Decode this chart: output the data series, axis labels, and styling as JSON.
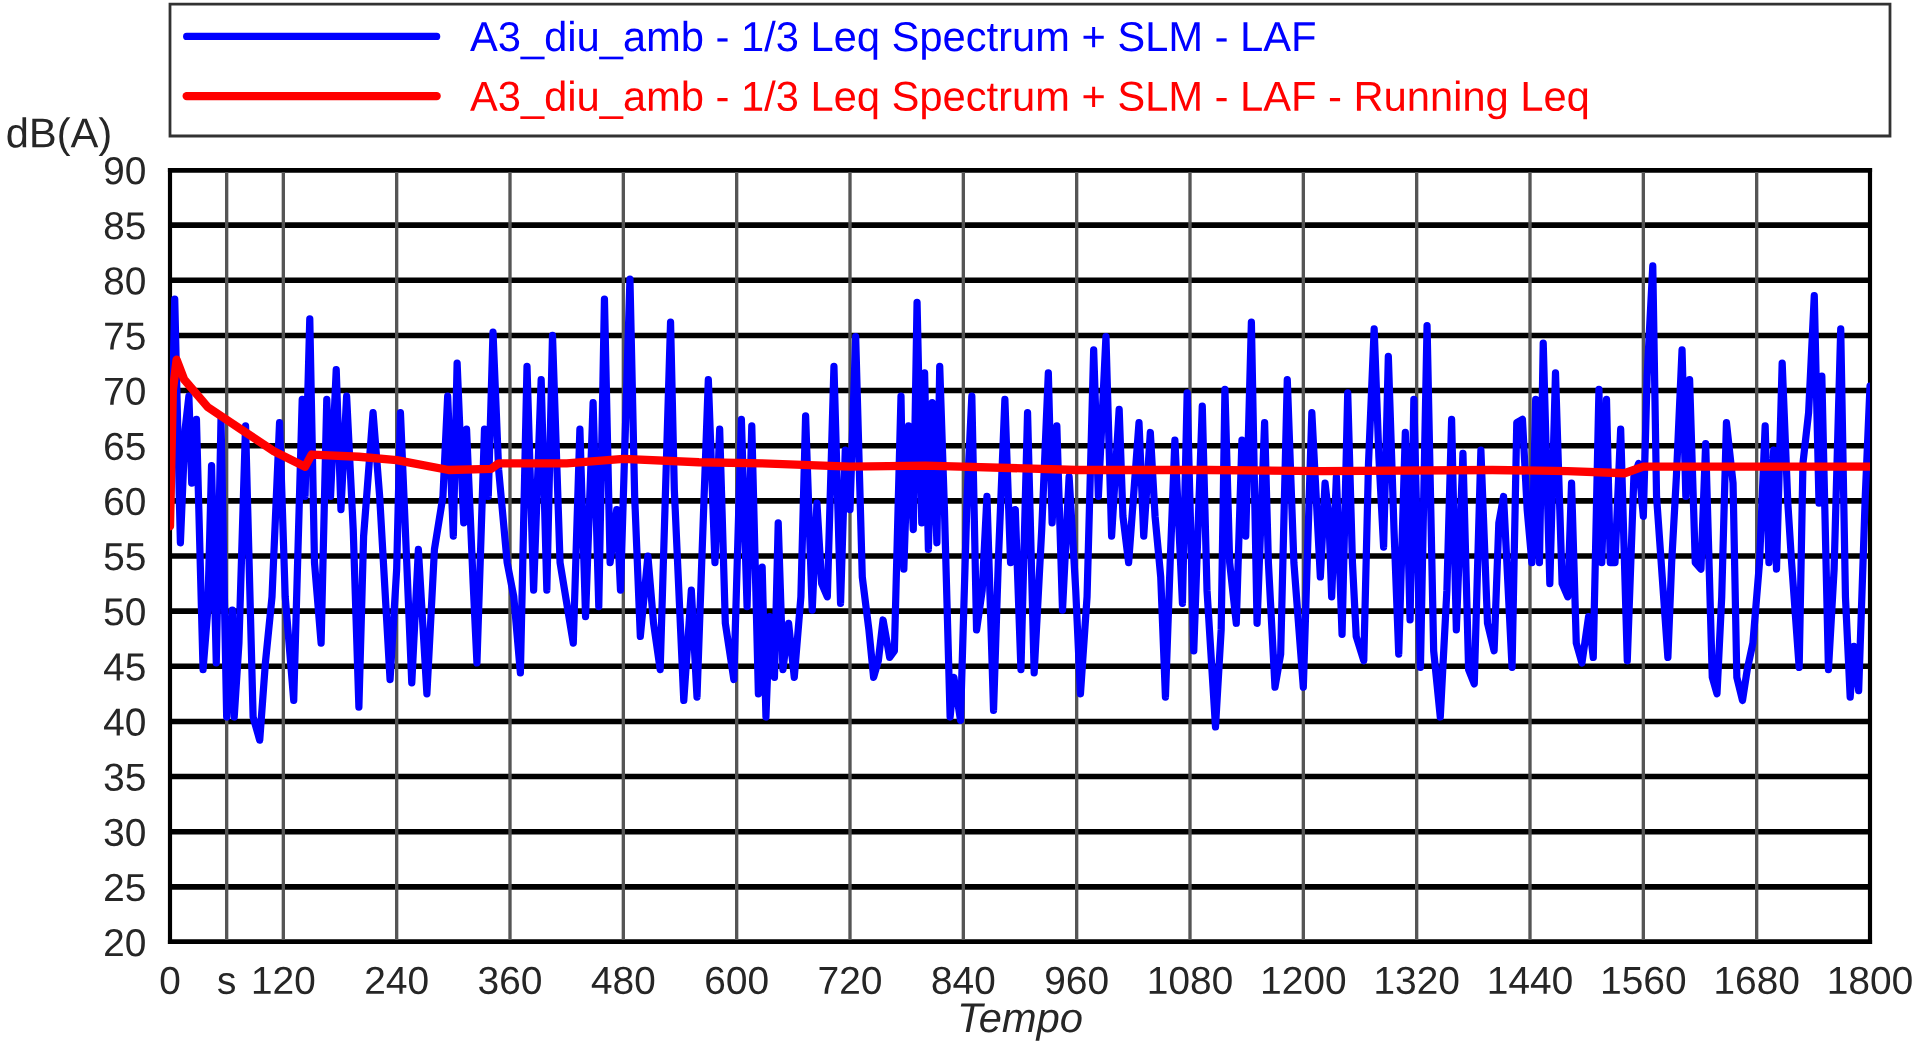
{
  "chart_data": {
    "type": "line",
    "xlabel": "Tempo",
    "ylabel": "dB(A)",
    "xlim": [
      0,
      1800
    ],
    "ylim": [
      20,
      90
    ],
    "xticks": [
      0,
      {
        "value": 60,
        "label": "s"
      },
      120,
      240,
      360,
      480,
      600,
      720,
      840,
      960,
      1080,
      1200,
      1320,
      1440,
      1560,
      1680,
      1800
    ],
    "yticks": [
      20,
      25,
      30,
      35,
      40,
      45,
      50,
      55,
      60,
      65,
      70,
      75,
      80,
      85,
      90
    ],
    "grid": true,
    "legend": "top",
    "line_style": "solid",
    "marker": "none",
    "series": [
      {
        "name": "A3_diu_amb - 1/3 Leq Spectrum + SLM - LAF",
        "color": "#0000ff",
        "x": [
          0,
          5,
          11,
          16,
          20,
          23,
          28,
          35,
          40,
          44,
          49,
          54,
          60,
          66,
          68,
          73,
          80,
          88,
          95,
          101,
          108,
          116,
          122,
          131,
          140,
          143,
          148,
          153,
          160,
          166,
          170,
          176,
          181,
          187,
          194,
          200,
          205,
          215,
          222,
          233,
          240,
          244,
          256,
          263,
          272,
          280,
          289,
          294,
          300,
          304,
          311,
          314,
          321,
          325,
          333,
          337,
          342,
          348,
          357,
          364,
          371,
          378,
          385,
          393,
          399,
          405,
          413,
          427,
          434,
          440,
          448,
          454,
          460,
          466,
          473,
          477,
          487,
          492,
          498,
          506,
          512,
          519,
          530,
          534,
          544,
          552,
          558,
          563,
          570,
          577,
          582,
          588,
          597,
          605,
          611,
          616,
          623,
          627,
          631,
          635,
          640,
          644,
          649,
          655,
          661,
          668,
          673,
          680,
          685,
          690,
          696,
          703,
          710,
          715,
          720,
          726,
          733,
          740,
          745,
          750,
          755,
          762,
          767,
          774,
          777,
          782,
          787,
          791,
          796,
          799,
          803,
          807,
          812,
          815,
          820,
          826,
          830,
          837,
          844,
          849,
          854,
          860,
          865,
          872,
          877,
          884,
          890,
          895,
          901,
          908,
          915,
          923,
          930,
          934,
          939,
          945,
          952,
          959,
          964,
          971,
          978,
          983,
          991,
          997,
          1005,
          1009,
          1015,
          1026,
          1031,
          1038,
          1043,
          1049,
          1054,
          1059,
          1064,
          1072,
          1077,
          1084,
          1093,
          1098,
          1107,
          1113,
          1117,
          1122,
          1129,
          1135,
          1139,
          1145,
          1151,
          1159,
          1163,
          1170,
          1176,
          1183,
          1190,
          1200,
          1209,
          1218,
          1223,
          1227,
          1230,
          1235,
          1241,
          1247,
          1252,
          1256,
          1264,
          1269,
          1275,
          1280,
          1285,
          1290,
          1296,
          1301,
          1308,
          1313,
          1317,
          1324,
          1331,
          1338,
          1345,
          1352,
          1357,
          1362,
          1369,
          1375,
          1381,
          1388,
          1395,
          1402,
          1407,
          1412,
          1421,
          1426,
          1432,
          1437,
          1442,
          1446,
          1450,
          1454,
          1461,
          1467,
          1474,
          1480,
          1484,
          1489,
          1495,
          1502,
          1507,
          1513,
          1516,
          1521,
          1525,
          1530,
          1536,
          1543,
          1550,
          1555,
          1560,
          1564,
          1570,
          1574,
          1580,
          1586,
          1590,
          1595,
          1601,
          1605,
          1609,
          1615,
          1621,
          1626,
          1633,
          1638,
          1643,
          1648,
          1655,
          1659,
          1665,
          1670,
          1676,
          1683,
          1689,
          1693,
          1698,
          1701,
          1707,
          1713,
          1717,
          1725,
          1729,
          1735,
          1741,
          1746,
          1749,
          1756,
          1762,
          1769,
          1774,
          1779,
          1783,
          1788,
          1795,
          1800
        ],
        "values": [
          57.7,
          78.3,
          56.2,
          66.5,
          69.5,
          61.6,
          67.4,
          44.7,
          50.1,
          63.2,
          45.3,
          67.4,
          40.4,
          50.1,
          40.4,
          47.1,
          66.8,
          40.4,
          38.3,
          45.3,
          51.3,
          67.1,
          51.3,
          41.9,
          69.2,
          60.4,
          76.5,
          54.4,
          47.1,
          69.2,
          60.4,
          71.9,
          59.2,
          69.5,
          57.4,
          41.3,
          56.8,
          68.0,
          60.4,
          43.8,
          53.8,
          68.0,
          43.5,
          55.6,
          42.5,
          55.6,
          60.4,
          69.5,
          56.8,
          72.5,
          58.0,
          66.5,
          52.5,
          45.3,
          66.5,
          60.4,
          75.3,
          62.8,
          54.4,
          51.3,
          44.4,
          72.2,
          51.9,
          71.0,
          51.9,
          75.0,
          54.4,
          47.1,
          66.5,
          49.5,
          68.9,
          50.4,
          78.3,
          54.4,
          59.2,
          51.9,
          80.1,
          60.4,
          47.7,
          55.0,
          48.9,
          44.7,
          76.2,
          61.0,
          41.9,
          51.9,
          42.2,
          54.4,
          71.0,
          54.4,
          66.5,
          48.9,
          43.8,
          67.4,
          50.4,
          66.8,
          42.5,
          54.0,
          40.4,
          49.5,
          44.0,
          58.0,
          44.7,
          48.9,
          44.0,
          51.3,
          67.7,
          50.1,
          59.8,
          52.5,
          51.3,
          72.2,
          50.7,
          64.6,
          59.2,
          74.9,
          53.1,
          48.3,
          44.0,
          45.5,
          49.2,
          45.8,
          46.4,
          69.5,
          53.8,
          66.8,
          57.4,
          78.0,
          58.0,
          71.6,
          55.6,
          68.9,
          56.2,
          72.2,
          59.2,
          40.4,
          44.0,
          40.1,
          60.4,
          69.5,
          48.3,
          51.9,
          60.4,
          41.0,
          54.4,
          69.2,
          54.4,
          59.2,
          44.7,
          68.0,
          44.4,
          57.4,
          71.6,
          58.0,
          66.8,
          50.1,
          62.2,
          51.9,
          42.5,
          51.3,
          73.7,
          60.4,
          74.9,
          56.8,
          68.3,
          58.6,
          54.4,
          67.1,
          56.8,
          66.2,
          58.6,
          53.1,
          42.2,
          54.4,
          65.5,
          50.7,
          69.8,
          46.4,
          68.6,
          51.9,
          39.5,
          48.3,
          70.1,
          54.4,
          48.9,
          65.5,
          56.8,
          76.2,
          48.9,
          67.1,
          54.4,
          43.1,
          46.1,
          71.0,
          54.4,
          43.1,
          68.0,
          53.1,
          61.6,
          58.6,
          51.3,
          62.2,
          47.9,
          69.8,
          54.4,
          47.7,
          45.5,
          63.4,
          75.6,
          64.0,
          55.8,
          73.1,
          57.4,
          46.1,
          66.2,
          49.2,
          69.2,
          44.9,
          75.9,
          46.4,
          40.4,
          51.9,
          67.4,
          48.3,
          64.3,
          44.7,
          43.4,
          64.6,
          48.9,
          46.4,
          58.0,
          60.4,
          44.9,
          67.1,
          67.4,
          59.2,
          54.4,
          69.2,
          54.4,
          74.3,
          52.5,
          71.6,
          52.5,
          51.3,
          61.6,
          47.1,
          45.3,
          49.5,
          45.8,
          70.1,
          54.4,
          69.2,
          54.4,
          54.4,
          66.5,
          45.5,
          62.2,
          63.4,
          58.6,
          71.3,
          81.3,
          60.4,
          53.1,
          45.8,
          54.4,
          62.2,
          73.7,
          60.4,
          71.0,
          54.4,
          53.8,
          65.2,
          44.0,
          42.5,
          51.3,
          67.1,
          61.6,
          44.0,
          41.9,
          44.7,
          47.1,
          54.4,
          66.8,
          54.4,
          64.6,
          53.8,
          72.5,
          59.8,
          54.4,
          44.9,
          63.4,
          68.0,
          78.6,
          59.8,
          71.3,
          44.7,
          53.8,
          75.6,
          51.3,
          42.2,
          46.8,
          42.8,
          60.4,
          70.4
        ]
      },
      {
        "name": "A3_diu_amb - 1/3 Leq Spectrum + SLM - LAF - Running Leq",
        "color": "#ff0000",
        "x": [
          0,
          3,
          7,
          15,
          40,
          75,
          110,
          143,
          150,
          200,
          240,
          295,
          340,
          348,
          420,
          480,
          560,
          627,
          720,
          800,
          960,
          1100,
          1220,
          1400,
          1480,
          1540,
          1560,
          1700,
          1800
        ],
        "values": [
          57.7,
          70,
          72.8,
          71,
          68.5,
          66.5,
          64.5,
          63.1,
          64.2,
          64,
          63.7,
          62.8,
          62.9,
          63.4,
          63.4,
          63.8,
          63.5,
          63.4,
          63.1,
          63.2,
          62.8,
          62.8,
          62.7,
          62.8,
          62.7,
          62.5,
          63.1,
          63.1,
          63.1
        ]
      }
    ]
  }
}
